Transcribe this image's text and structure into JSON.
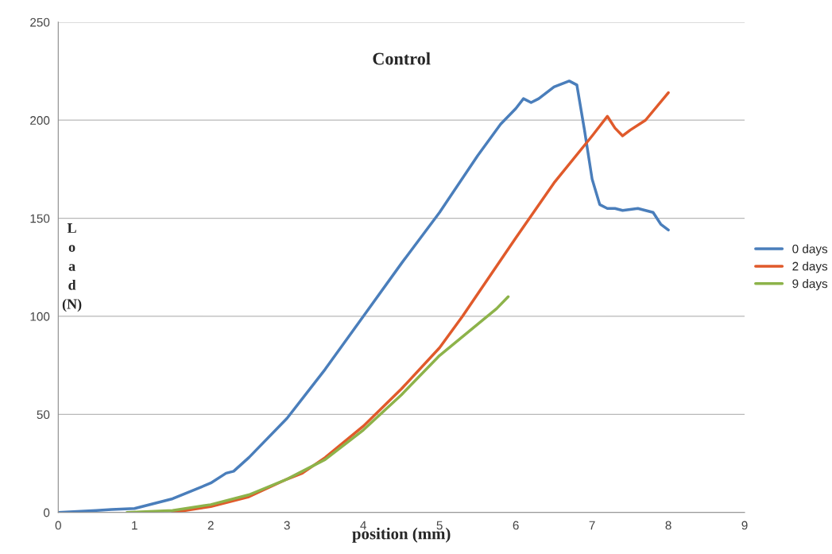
{
  "chart_data": {
    "type": "line",
    "title": "Control",
    "xlabel": "position (mm)",
    "ylabel": "Load (N)",
    "xlim": [
      0,
      9
    ],
    "xticks": [
      0,
      1,
      2,
      3,
      4,
      5,
      6,
      7,
      8,
      9
    ],
    "ylim": [
      0,
      250
    ],
    "yticks": [
      0,
      50,
      100,
      150,
      200,
      250
    ],
    "grid": "y",
    "legend": "right",
    "marker": "none",
    "line_style": "solid",
    "series": [
      {
        "name": "0 days",
        "color": "#4a7ebb",
        "x": [
          0,
          0.5,
          0.7,
          1,
          1.5,
          2,
          2.2,
          2.3,
          2.5,
          3,
          3.5,
          4,
          4.5,
          5,
          5.5,
          5.8,
          6,
          6.1,
          6.2,
          6.3,
          6.5,
          6.7,
          6.8,
          6.9,
          7,
          7.1,
          7.2,
          7.3,
          7.4,
          7.6,
          7.8,
          7.9,
          8
        ],
        "values": [
          0,
          1,
          1.5,
          2,
          7,
          15,
          20,
          21,
          28,
          48,
          73,
          100,
          127,
          153,
          182,
          198,
          206,
          211,
          209,
          211,
          217,
          220,
          218,
          195,
          170,
          157,
          155,
          155,
          154,
          155,
          153,
          147,
          144
        ]
      },
      {
        "name": "2 days",
        "color": "#e05a2b",
        "x": [
          1.5,
          2,
          2.5,
          3,
          3.2,
          3.5,
          4,
          4.5,
          5,
          5.3,
          6,
          6.5,
          7,
          7.2,
          7.3,
          7.4,
          7.5,
          7.7,
          8
        ],
        "values": [
          0,
          3,
          8,
          17,
          20,
          28,
          44,
          63,
          84,
          100,
          140,
          168,
          192,
          202,
          196,
          192,
          195,
          200,
          214
        ]
      },
      {
        "name": "9 days",
        "color": "#8db34a",
        "x": [
          0.9,
          1.5,
          2,
          2.5,
          3,
          3.1,
          3.5,
          4,
          4.5,
          5,
          5.5,
          5.75,
          5.9
        ],
        "values": [
          0,
          1,
          4,
          9,
          17,
          19,
          27,
          42,
          60,
          80,
          96,
          104,
          110
        ]
      }
    ]
  }
}
